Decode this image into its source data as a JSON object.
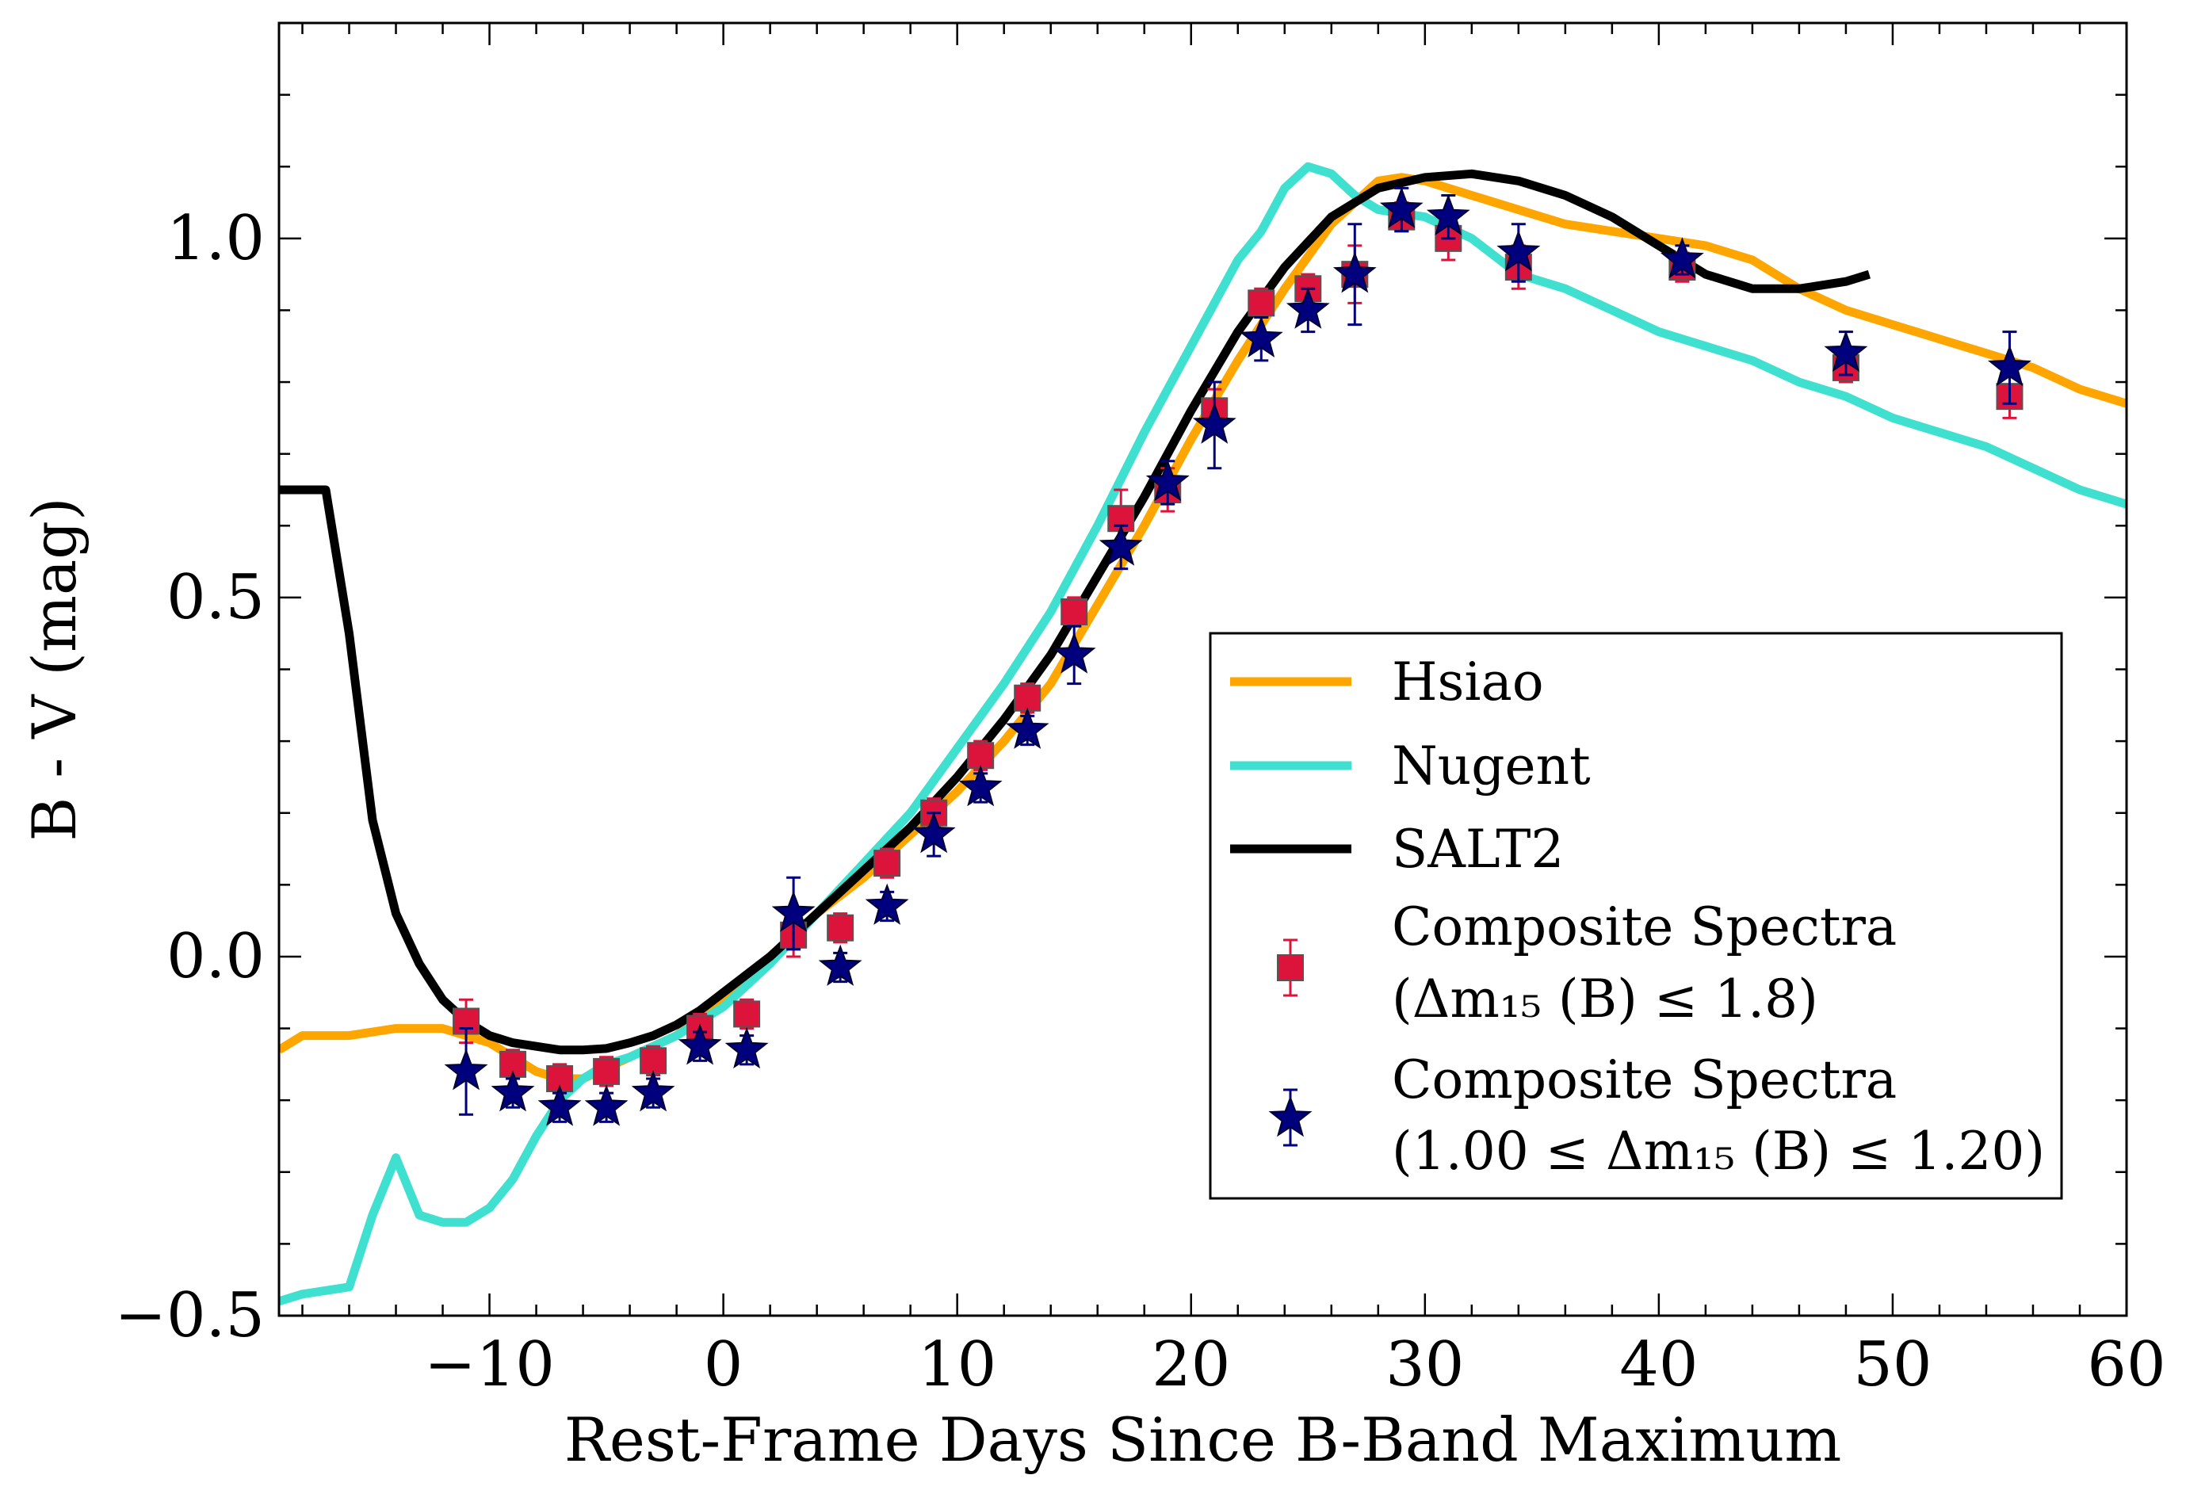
{
  "chart_data": {
    "type": "line",
    "title": "",
    "xlabel": "Rest-Frame Days Since B-Band Maximum",
    "ylabel": "B - V (mag)",
    "xlim": [
      -19,
      60
    ],
    "ylim": [
      -0.5,
      1.3
    ],
    "xticks": [
      -10,
      0,
      10,
      20,
      30,
      40,
      50,
      60
    ],
    "xtick_labels": [
      "−10",
      "0",
      "10",
      "20",
      "30",
      "40",
      "50",
      "60"
    ],
    "yticks": [
      -0.5,
      0.0,
      0.5,
      1.0
    ],
    "ytick_labels": [
      "−0.5",
      "0.0",
      "0.5",
      "1.0"
    ],
    "grid": false,
    "legend_position": "center-right",
    "series": [
      {
        "name": "Hsiao",
        "kind": "line",
        "color": "#FFA500",
        "points": [
          [
            -19,
            -0.13
          ],
          [
            -18,
            -0.11
          ],
          [
            -16,
            -0.11
          ],
          [
            -14,
            -0.1
          ],
          [
            -12,
            -0.1
          ],
          [
            -10,
            -0.12
          ],
          [
            -8,
            -0.16
          ],
          [
            -7,
            -0.17
          ],
          [
            -6,
            -0.17
          ],
          [
            -4,
            -0.14
          ],
          [
            -2,
            -0.11
          ],
          [
            0,
            -0.06
          ],
          [
            2,
            0.0
          ],
          [
            4,
            0.06
          ],
          [
            6,
            0.11
          ],
          [
            8,
            0.17
          ],
          [
            10,
            0.23
          ],
          [
            12,
            0.3
          ],
          [
            14,
            0.38
          ],
          [
            16,
            0.49
          ],
          [
            18,
            0.6
          ],
          [
            20,
            0.72
          ],
          [
            22,
            0.83
          ],
          [
            24,
            0.93
          ],
          [
            26,
            1.02
          ],
          [
            28,
            1.08
          ],
          [
            29,
            1.085
          ],
          [
            30,
            1.08
          ],
          [
            32,
            1.06
          ],
          [
            34,
            1.04
          ],
          [
            36,
            1.02
          ],
          [
            38,
            1.01
          ],
          [
            40,
            1.0
          ],
          [
            42,
            0.99
          ],
          [
            44,
            0.97
          ],
          [
            46,
            0.93
          ],
          [
            48,
            0.9
          ],
          [
            50,
            0.88
          ],
          [
            52,
            0.86
          ],
          [
            54,
            0.84
          ],
          [
            56,
            0.82
          ],
          [
            58,
            0.79
          ],
          [
            60,
            0.77
          ]
        ]
      },
      {
        "name": "Nugent",
        "kind": "line",
        "color": "#40E0D0",
        "points": [
          [
            -19,
            -0.48
          ],
          [
            -18,
            -0.47
          ],
          [
            -16,
            -0.46
          ],
          [
            -15,
            -0.36
          ],
          [
            -14,
            -0.28
          ],
          [
            -13,
            -0.36
          ],
          [
            -12,
            -0.37
          ],
          [
            -11,
            -0.37
          ],
          [
            -10,
            -0.35
          ],
          [
            -9,
            -0.31
          ],
          [
            -8,
            -0.25
          ],
          [
            -7,
            -0.2
          ],
          [
            -6,
            -0.17
          ],
          [
            -5,
            -0.15
          ],
          [
            -4,
            -0.14
          ],
          [
            -2,
            -0.11
          ],
          [
            0,
            -0.07
          ],
          [
            2,
            -0.01
          ],
          [
            4,
            0.06
          ],
          [
            6,
            0.13
          ],
          [
            8,
            0.2
          ],
          [
            10,
            0.29
          ],
          [
            12,
            0.38
          ],
          [
            14,
            0.48
          ],
          [
            16,
            0.6
          ],
          [
            18,
            0.73
          ],
          [
            20,
            0.85
          ],
          [
            22,
            0.97
          ],
          [
            23,
            1.01
          ],
          [
            24,
            1.07
          ],
          [
            25,
            1.1
          ],
          [
            26,
            1.09
          ],
          [
            27,
            1.06
          ],
          [
            28,
            1.04
          ],
          [
            30,
            1.03
          ],
          [
            32,
            1.0
          ],
          [
            34,
            0.95
          ],
          [
            36,
            0.93
          ],
          [
            38,
            0.9
          ],
          [
            40,
            0.87
          ],
          [
            42,
            0.85
          ],
          [
            44,
            0.83
          ],
          [
            46,
            0.8
          ],
          [
            48,
            0.78
          ],
          [
            50,
            0.75
          ],
          [
            52,
            0.73
          ],
          [
            54,
            0.71
          ],
          [
            56,
            0.68
          ],
          [
            58,
            0.65
          ],
          [
            60,
            0.63
          ]
        ]
      },
      {
        "name": "SALT2",
        "kind": "line",
        "color": "#000000",
        "points": [
          [
            -19,
            0.65
          ],
          [
            -17,
            0.65
          ],
          [
            -16,
            0.45
          ],
          [
            -15,
            0.19
          ],
          [
            -14,
            0.06
          ],
          [
            -13,
            -0.01
          ],
          [
            -12,
            -0.06
          ],
          [
            -11,
            -0.09
          ],
          [
            -10,
            -0.11
          ],
          [
            -9,
            -0.12
          ],
          [
            -8,
            -0.125
          ],
          [
            -7,
            -0.13
          ],
          [
            -6,
            -0.13
          ],
          [
            -5,
            -0.128
          ],
          [
            -4,
            -0.12
          ],
          [
            -3,
            -0.11
          ],
          [
            -2,
            -0.095
          ],
          [
            -1,
            -0.075
          ],
          [
            0,
            -0.05
          ],
          [
            2,
            0.0
          ],
          [
            4,
            0.06
          ],
          [
            6,
            0.12
          ],
          [
            8,
            0.18
          ],
          [
            10,
            0.25
          ],
          [
            12,
            0.33
          ],
          [
            14,
            0.42
          ],
          [
            16,
            0.53
          ],
          [
            18,
            0.64
          ],
          [
            20,
            0.76
          ],
          [
            22,
            0.87
          ],
          [
            24,
            0.96
          ],
          [
            26,
            1.03
          ],
          [
            28,
            1.07
          ],
          [
            30,
            1.085
          ],
          [
            32,
            1.09
          ],
          [
            34,
            1.08
          ],
          [
            36,
            1.06
          ],
          [
            38,
            1.03
          ],
          [
            40,
            0.99
          ],
          [
            42,
            0.95
          ],
          [
            44,
            0.93
          ],
          [
            46,
            0.93
          ],
          [
            48,
            0.94
          ],
          [
            49,
            0.95
          ]
        ]
      },
      {
        "name": "Composite Spectra\n(Δm₁₅ (B) ≤ 1.8)",
        "kind": "scatter",
        "marker": "square",
        "color": "#DC143C",
        "points": [
          {
            "x": -11,
            "y": -0.09,
            "err": 0.03
          },
          {
            "x": -9,
            "y": -0.15,
            "err": 0.02
          },
          {
            "x": -7,
            "y": -0.17,
            "err": 0.02
          },
          {
            "x": -5,
            "y": -0.16,
            "err": 0.02
          },
          {
            "x": -3,
            "y": -0.145,
            "err": 0.02
          },
          {
            "x": -1,
            "y": -0.1,
            "err": 0.02
          },
          {
            "x": 1,
            "y": -0.08,
            "err": 0.02
          },
          {
            "x": 3,
            "y": 0.03,
            "err": 0.03
          },
          {
            "x": 5,
            "y": 0.04,
            "err": 0.02
          },
          {
            "x": 7,
            "y": 0.13,
            "err": 0.02
          },
          {
            "x": 9,
            "y": 0.2,
            "err": 0.02
          },
          {
            "x": 11,
            "y": 0.28,
            "err": 0.02
          },
          {
            "x": 13,
            "y": 0.36,
            "err": 0.02
          },
          {
            "x": 15,
            "y": 0.48,
            "err": 0.02
          },
          {
            "x": 17,
            "y": 0.61,
            "err": 0.04
          },
          {
            "x": 19,
            "y": 0.65,
            "err": 0.03
          },
          {
            "x": 21,
            "y": 0.76,
            "err": 0.03
          },
          {
            "x": 23,
            "y": 0.91,
            "err": 0.02
          },
          {
            "x": 25,
            "y": 0.93,
            "err": 0.02
          },
          {
            "x": 27,
            "y": 0.95,
            "err": 0.04
          },
          {
            "x": 29,
            "y": 1.03,
            "err": 0.02
          },
          {
            "x": 31,
            "y": 1.0,
            "err": 0.03
          },
          {
            "x": 34,
            "y": 0.96,
            "err": 0.03
          },
          {
            "x": 41,
            "y": 0.96,
            "err": 0.02
          },
          {
            "x": 48,
            "y": 0.82,
            "err": 0.02
          },
          {
            "x": 55,
            "y": 0.78,
            "err": 0.03
          }
        ]
      },
      {
        "name": "Composite Spectra\n(1.00 ≤ Δm₁₅ (B) ≤ 1.20)",
        "kind": "scatter",
        "marker": "star",
        "color": "#00007F",
        "points": [
          {
            "x": -11,
            "y": -0.16,
            "err": 0.06
          },
          {
            "x": -9,
            "y": -0.19,
            "err": 0.02
          },
          {
            "x": -7,
            "y": -0.21,
            "err": 0.02
          },
          {
            "x": -5,
            "y": -0.21,
            "err": 0.02
          },
          {
            "x": -3,
            "y": -0.19,
            "err": 0.02
          },
          {
            "x": -1,
            "y": -0.125,
            "err": 0.02
          },
          {
            "x": 1,
            "y": -0.13,
            "err": 0.02
          },
          {
            "x": 3,
            "y": 0.06,
            "err": 0.05
          },
          {
            "x": 5,
            "y": -0.015,
            "err": 0.02
          },
          {
            "x": 7,
            "y": 0.07,
            "err": 0.02
          },
          {
            "x": 9,
            "y": 0.17,
            "err": 0.03
          },
          {
            "x": 11,
            "y": 0.235,
            "err": 0.02
          },
          {
            "x": 13,
            "y": 0.315,
            "err": 0.02
          },
          {
            "x": 15,
            "y": 0.42,
            "err": 0.04
          },
          {
            "x": 17,
            "y": 0.57,
            "err": 0.03
          },
          {
            "x": 19,
            "y": 0.66,
            "err": 0.03
          },
          {
            "x": 21,
            "y": 0.74,
            "err": 0.06
          },
          {
            "x": 23,
            "y": 0.86,
            "err": 0.03
          },
          {
            "x": 25,
            "y": 0.9,
            "err": 0.03
          },
          {
            "x": 27,
            "y": 0.95,
            "err": 0.07
          },
          {
            "x": 29,
            "y": 1.04,
            "err": 0.03
          },
          {
            "x": 31,
            "y": 1.03,
            "err": 0.03
          },
          {
            "x": 34,
            "y": 0.98,
            "err": 0.04
          },
          {
            "x": 41,
            "y": 0.97,
            "err": 0.02
          },
          {
            "x": 48,
            "y": 0.84,
            "err": 0.03
          },
          {
            "x": 55,
            "y": 0.82,
            "err": 0.05
          }
        ]
      }
    ],
    "legend": [
      {
        "label": "Hsiao"
      },
      {
        "label": "Nugent"
      },
      {
        "label": "SALT2"
      },
      {
        "label_line1": "Composite Spectra",
        "label_line2": "(Δm₁₅ (B) ≤ 1.8)"
      },
      {
        "label_line1": "Composite Spectra",
        "label_line2": "(1.00 ≤ Δm₁₅ (B) ≤ 1.20)"
      }
    ]
  }
}
